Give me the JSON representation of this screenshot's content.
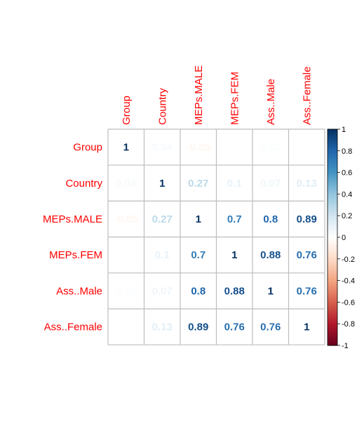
{
  "chart_data": {
    "type": "heatmap",
    "variables": [
      "Group",
      "Country",
      "MEPs.MALE",
      "MEPs.FEM",
      "Ass..Male",
      "Ass..Female"
    ],
    "matrix": [
      [
        1,
        0.04,
        -0.05,
        0.0,
        0.02,
        0.01
      ],
      [
        0.04,
        1,
        0.27,
        0.1,
        0.07,
        0.13
      ],
      [
        -0.05,
        0.27,
        1,
        0.7,
        0.8,
        0.89
      ],
      [
        0.0,
        0.1,
        0.7,
        1,
        0.88,
        0.76
      ],
      [
        0.02,
        0.07,
        0.8,
        0.88,
        1,
        0.76
      ],
      [
        0.01,
        0.13,
        0.89,
        0.76,
        0.76,
        1
      ]
    ],
    "labels": [
      [
        "1",
        "0.04",
        "-0.05",
        "0",
        "0.02",
        "0.01"
      ],
      [
        "0.04",
        "1",
        "0.27",
        "0.1",
        "0.07",
        "0.13"
      ],
      [
        "-0.05",
        "0.27",
        "1",
        "0.7",
        "0.8",
        "0.89"
      ],
      [
        "0",
        "0.1",
        "0.7",
        "1",
        "0.88",
        "0.76"
      ],
      [
        "0.02",
        "0.07",
        "0.8",
        "0.88",
        "1",
        "0.76"
      ],
      [
        "0.01",
        "0.13",
        "0.89",
        "0.76",
        "0.76",
        "1"
      ]
    ],
    "colorbar": {
      "range": [
        -1,
        1
      ],
      "ticks": [
        "1",
        "0.8",
        "0.6",
        "0.4",
        "0.2",
        "0",
        "-0.2",
        "-0.4",
        "-0.6",
        "-0.8",
        "-1"
      ]
    },
    "label_color": "#ff0000",
    "grid_color": "#bebebe",
    "palette": [
      "#67001f",
      "#b2182b",
      "#d6604d",
      "#f4a582",
      "#fddbc7",
      "#ffffff",
      "#d1e5f0",
      "#92c5de",
      "#4393c3",
      "#2166ac",
      "#053061"
    ]
  }
}
